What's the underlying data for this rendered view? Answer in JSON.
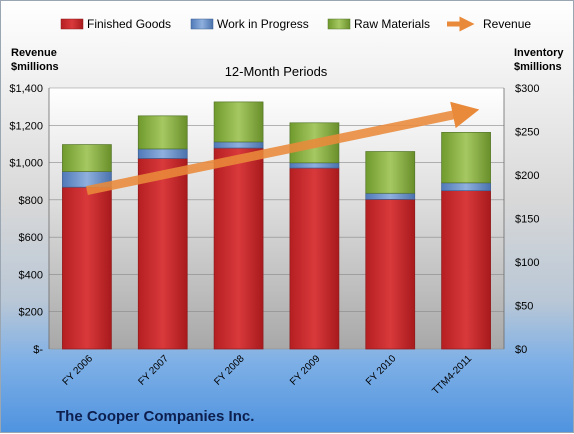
{
  "chart_data": {
    "type": "bar",
    "subtitle": "12-Month Periods",
    "company": "The Cooper Companies Inc.",
    "categories": [
      "FY 2006",
      "FY 2007",
      "FY 2008",
      "FY 2009",
      "FY 2010",
      "TTM4-2011"
    ],
    "left_axis": {
      "title": [
        "Revenue",
        "$millions"
      ],
      "ylim": [
        0,
        1400
      ],
      "ticks": [
        0,
        200,
        400,
        600,
        800,
        1000,
        1200,
        1400
      ],
      "tick_labels": [
        "$-",
        "$200",
        "$400",
        "$600",
        "$800",
        "$1,000",
        "$1,200",
        "$1,400"
      ]
    },
    "right_axis": {
      "title": [
        "Inventory",
        "$millions"
      ],
      "ylim": [
        0,
        300
      ],
      "ticks": [
        0,
        50,
        100,
        150,
        200,
        250,
        300
      ],
      "tick_labels": [
        "$0",
        "$50",
        "$100",
        "$150",
        "$200",
        "$250",
        "$300"
      ]
    },
    "legend_placement": "top",
    "series": [
      {
        "name": "Finished Goods",
        "axis": "right",
        "stack": true,
        "color": "#c0282a",
        "values": [
          186,
          219,
          231,
          208,
          172,
          182
        ]
      },
      {
        "name": "Work in Progress",
        "axis": "right",
        "stack": true,
        "color": "#5b86c6",
        "values": [
          18,
          11,
          7,
          6,
          7,
          9
        ]
      },
      {
        "name": "Raw Materials",
        "axis": "right",
        "stack": true,
        "color": "#7faa38",
        "values": [
          31,
          38,
          46,
          46,
          48,
          58
        ]
      },
      {
        "name": "Revenue",
        "axis": "left",
        "type": "line",
        "color": "#e98a3a",
        "values": [
          850,
          950,
          1060,
          1080,
          1160,
          1270
        ]
      }
    ]
  }
}
